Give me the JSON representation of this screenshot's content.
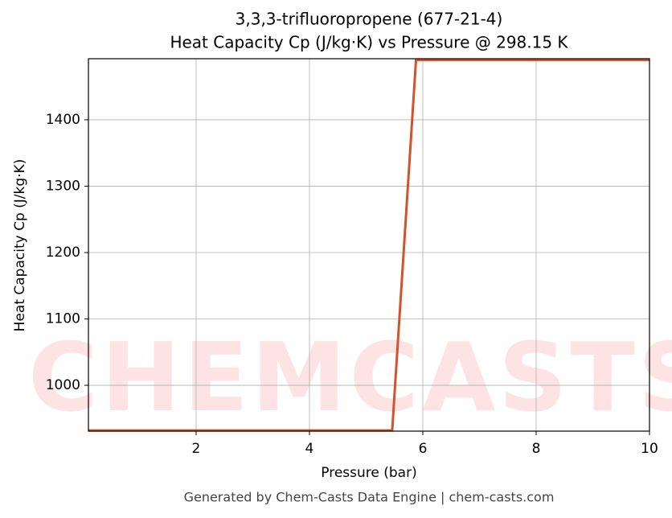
{
  "chart_data": {
    "type": "line",
    "title": "3,3,3-trifluoropropene (677-21-4)",
    "subtitle": "Heat Capacity Cp (J/kg·K) vs Pressure @ 298.15 K",
    "x_label": "Pressure (bar)",
    "y_label": "Heat Capacity Cp (J/kg·K)",
    "footer": "Generated by Chem-Casts Data Engine | chem-casts.com",
    "watermark": "CHEMCASTS",
    "x": [
      0.1,
      5.46,
      5.88,
      10
    ],
    "series": [
      {
        "name": "Cp",
        "color": "#d4522a",
        "values": [
          932,
          932,
          1490,
          1490
        ]
      }
    ],
    "xlim": [
      0.1,
      10
    ],
    "ylim": [
      931,
      1492
    ],
    "xticks": [
      2,
      4,
      6,
      8,
      10
    ],
    "yticks": [
      1000,
      1100,
      1200,
      1300,
      1400
    ],
    "grid": true
  }
}
